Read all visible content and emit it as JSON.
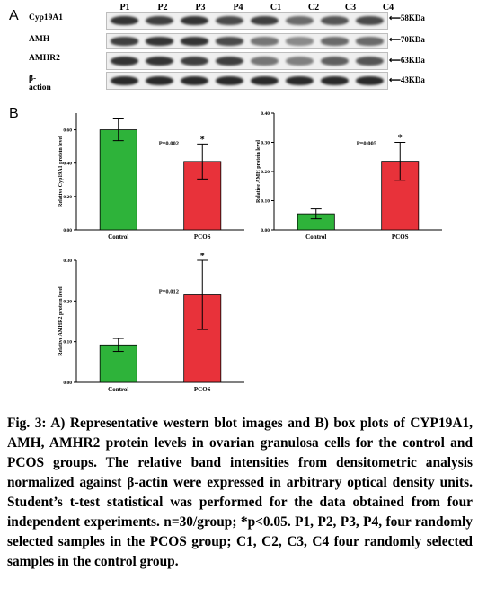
{
  "panel_a": {
    "letter": "A",
    "lanes": [
      "P1",
      "P2",
      "P3",
      "P4",
      "C1",
      "C2",
      "C3",
      "C4"
    ],
    "rows": [
      {
        "label": "Cyp19A1",
        "marker": "58KDa",
        "intensity": [
          0.85,
          0.8,
          0.85,
          0.75,
          0.8,
          0.6,
          0.7,
          0.75
        ]
      },
      {
        "label": "AMH",
        "marker": "70KDa",
        "intensity": [
          0.8,
          0.85,
          0.85,
          0.75,
          0.55,
          0.45,
          0.6,
          0.6
        ]
      },
      {
        "label": "AMHR2",
        "marker": "63KDa",
        "intensity": [
          0.85,
          0.85,
          0.8,
          0.8,
          0.55,
          0.5,
          0.65,
          0.7
        ]
      },
      {
        "label": "β-action",
        "marker": "43KDa",
        "intensity": [
          0.9,
          0.9,
          0.9,
          0.9,
          0.9,
          0.9,
          0.9,
          0.9
        ]
      }
    ]
  },
  "panel_b": {
    "letter": "B"
  },
  "colors": {
    "control": "#2eb33a",
    "pcos": "#e8323a",
    "grid": "#000000"
  },
  "chart_data": [
    {
      "type": "bar",
      "categories": [
        "Control",
        "PCOS"
      ],
      "values": [
        0.6,
        0.41
      ],
      "errors": [
        0.065,
        0.105
      ],
      "significance": [
        "",
        "*"
      ],
      "ylabel": "Relative Cyp19A1 protein level",
      "annotation": "P=0.002",
      "ylim": [
        0,
        0.7
      ],
      "yticks": [
        0.0,
        0.2,
        0.4,
        0.6
      ],
      "ytick_labels": [
        "0.00",
        "0.20",
        "0.40",
        "0.60"
      ]
    },
    {
      "type": "bar",
      "categories": [
        "Control",
        "PCOS"
      ],
      "values": [
        0.055,
        0.235
      ],
      "errors": [
        0.017,
        0.065
      ],
      "significance": [
        "",
        "*"
      ],
      "ylabel": "Relative AMH protein level",
      "annotation": "P=0.005",
      "ylim": [
        0,
        0.4
      ],
      "yticks": [
        0.0,
        0.1,
        0.2,
        0.3,
        0.4
      ],
      "ytick_labels": [
        "0.00",
        "0.10",
        "0.20",
        "0.30",
        "0.40"
      ]
    },
    {
      "type": "bar",
      "categories": [
        "Control",
        "PCOS"
      ],
      "values": [
        0.092,
        0.215
      ],
      "errors": [
        0.016,
        0.085
      ],
      "significance": [
        "",
        "*"
      ],
      "ylabel": "Relative AMHR2 protein level",
      "annotation": "P=0.012",
      "ylim": [
        0,
        0.3
      ],
      "yticks": [
        0.0,
        0.1,
        0.2,
        0.3
      ],
      "ytick_labels": [
        "0.00",
        "0.10",
        "0.20",
        "0.30"
      ]
    }
  ],
  "caption": "Fig. 3: A) Representative western blot images and B) box plots of CYP19A1, AMH, AMHR2 protein levels in ovarian granulosa cells for the control and PCOS groups. The relative band intensities from densitometric analysis normalized against β-actin were expressed in arbitrary optical density units. Student’s t-test statistical was performed for the data obtained from four independent experiments. n=30/group; *p<0.05. P1, P2, P3, P4, four randomly selected samples in the PCOS group; C1, C2, C3, C4 four randomly selected samples in the control group."
}
